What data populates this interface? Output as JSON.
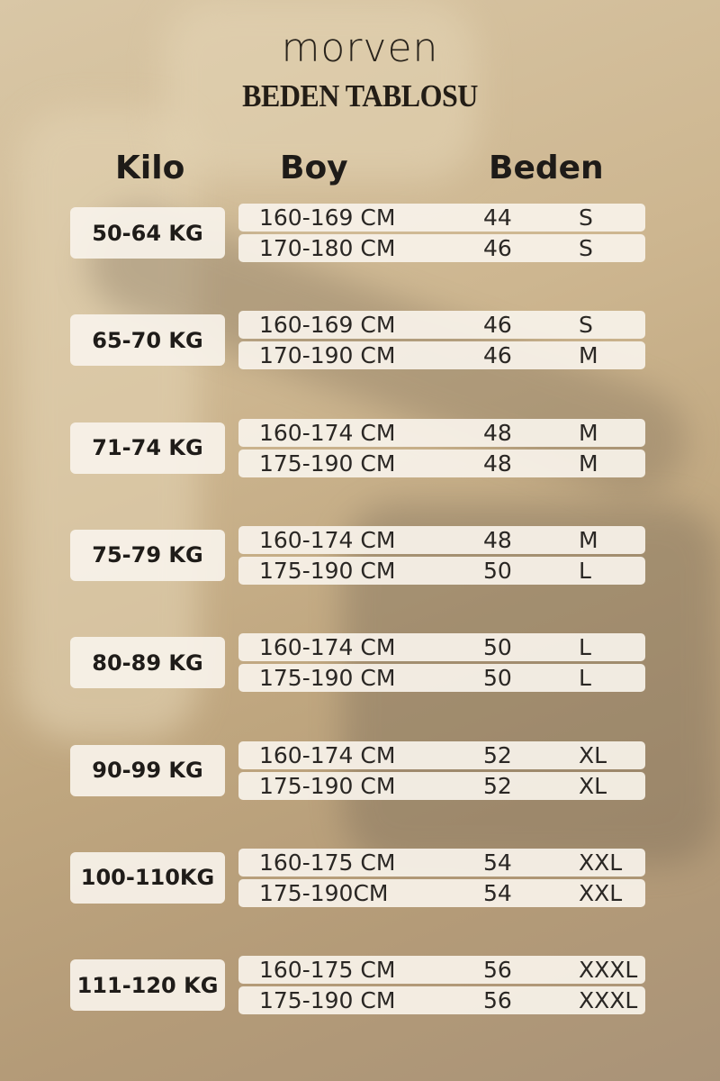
{
  "brand": "morven",
  "title": "BEDEN TABLOSU",
  "headers": {
    "kilo": "Kilo",
    "boy": "Boy",
    "beden": "Beden"
  },
  "groups": [
    {
      "kilo": "50-64 KG",
      "rows": [
        {
          "boy": "160-169 CM",
          "num": "44",
          "size": "S"
        },
        {
          "boy": "170-180 CM",
          "num": "46",
          "size": "S"
        }
      ]
    },
    {
      "kilo": "65-70 KG",
      "rows": [
        {
          "boy": "160-169 CM",
          "num": "46",
          "size": "S"
        },
        {
          "boy": "170-190 CM",
          "num": "46",
          "size": "M"
        }
      ]
    },
    {
      "kilo": "71-74 KG",
      "rows": [
        {
          "boy": "160-174 CM",
          "num": "48",
          "size": "M"
        },
        {
          "boy": "175-190 CM",
          "num": "48",
          "size": "M"
        }
      ]
    },
    {
      "kilo": "75-79 KG",
      "rows": [
        {
          "boy": "160-174 CM",
          "num": "48",
          "size": "M"
        },
        {
          "boy": "175-190 CM",
          "num": "50",
          "size": "L"
        }
      ]
    },
    {
      "kilo": "80-89 KG",
      "rows": [
        {
          "boy": "160-174 CM",
          "num": "50",
          "size": "L"
        },
        {
          "boy": "175-190 CM",
          "num": "50",
          "size": "L"
        }
      ]
    },
    {
      "kilo": "90-99 KG",
      "rows": [
        {
          "boy": "160-174 CM",
          "num": "52",
          "size": "XL"
        },
        {
          "boy": "175-190 CM",
          "num": "52",
          "size": "XL"
        }
      ]
    },
    {
      "kilo": "100-110KG",
      "rows": [
        {
          "boy": "160-175 CM",
          "num": "54",
          "size": "XXL"
        },
        {
          "boy": "175-190CM",
          "num": "54",
          "size": "XXL"
        }
      ]
    },
    {
      "kilo": "111-120 KG",
      "rows": [
        {
          "boy": "160-175 CM",
          "num": "56",
          "size": "XXXL"
        },
        {
          "boy": "175-190 CM",
          "num": "56",
          "size": "XXXL"
        }
      ]
    }
  ]
}
